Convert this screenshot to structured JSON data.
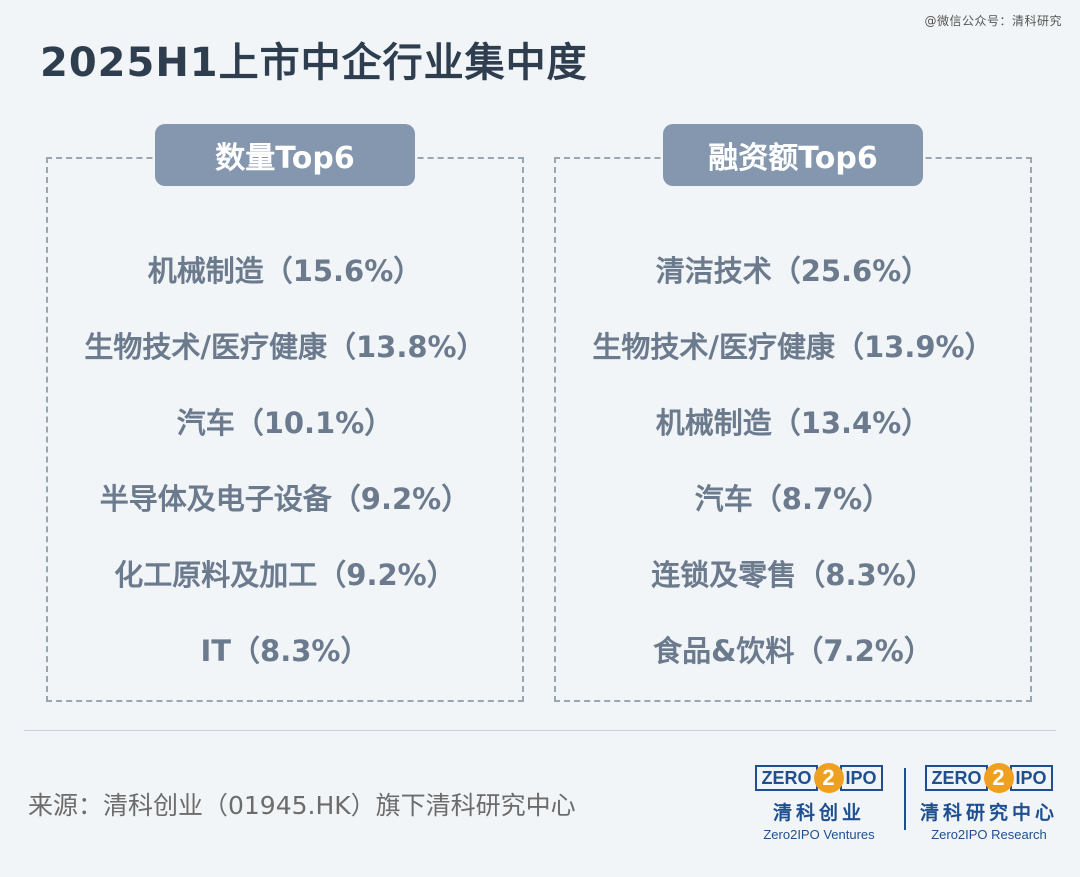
{
  "watermark": "@微信公众号：清科研究",
  "title": "2025H1上市中企行业集中度",
  "left_panel": {
    "header": "数量Top6",
    "items": [
      "机械制造（15.6%）",
      "生物技术/医疗健康（13.8%）",
      "汽车（10.1%）",
      "半导体及电子设备（9.2%）",
      "化工原料及加工（9.2%）",
      "IT（8.3%）"
    ]
  },
  "right_panel": {
    "header": "融资额Top6",
    "items": [
      "清洁技术（25.6%）",
      "生物技术/医疗健康（13.9%）",
      "机械制造（13.4%）",
      "汽车（8.7%）",
      "连锁及零售（8.3%）",
      "食品&饮料（7.2%）"
    ]
  },
  "source": "来源：清科创业（01945.HK）旗下清科研究中心",
  "logos": [
    {
      "mark_left": "ZERO",
      "mark_mid": "2",
      "mark_right": "IPO",
      "cn": "清科创业",
      "en": "Zero2IPO Ventures"
    },
    {
      "mark_left": "ZERO",
      "mark_mid": "2",
      "mark_right": "IPO",
      "cn": "清科研究中心",
      "en": "Zero2IPO Research"
    }
  ],
  "colors": {
    "background": "#f1f5f8",
    "title": "#2f3e4e",
    "pill": "#8497ae",
    "item_text": "#6c7a8d",
    "brand_blue": "#1f4f8f",
    "brand_orange": "#f0a020"
  }
}
